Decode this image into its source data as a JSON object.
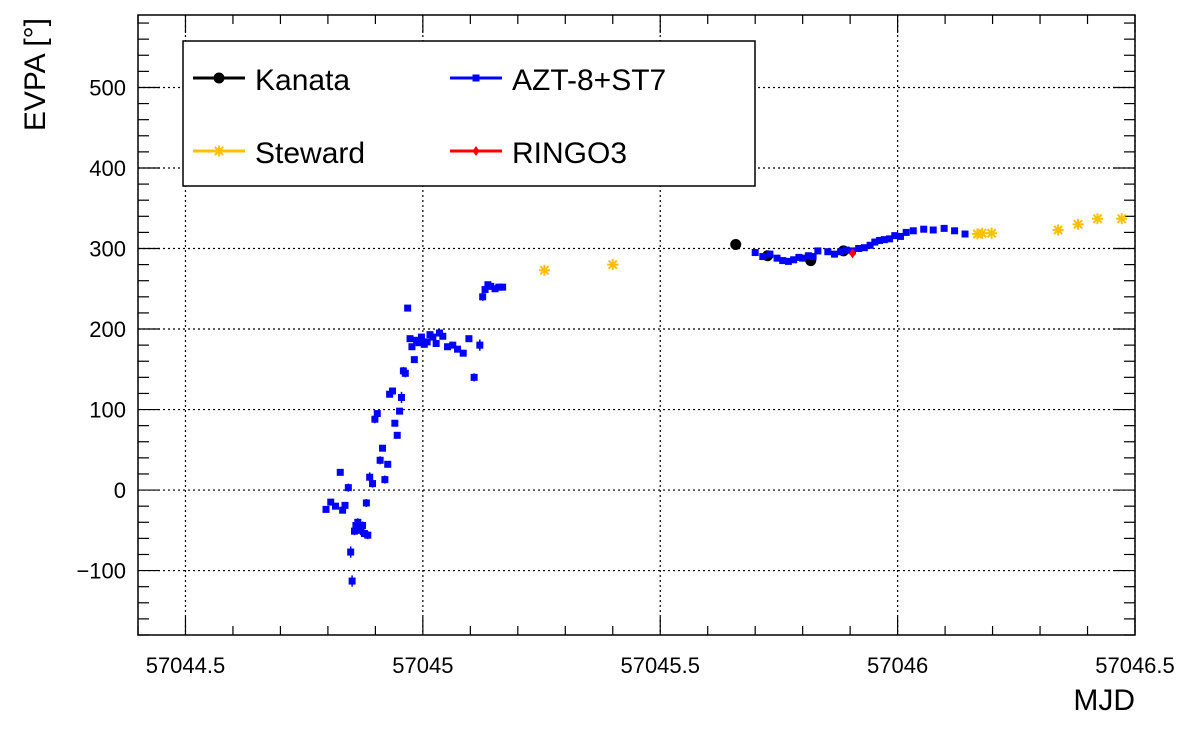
{
  "chart_data": {
    "type": "scatter",
    "xlabel": "MJD",
    "ylabel": "EVPA [°]",
    "xlim": [
      57044.4,
      57046.5
    ],
    "ylim": [
      -180,
      590
    ],
    "x_ticks": [
      {
        "value": 57044.5,
        "label": "57044.5"
      },
      {
        "value": 57045.0,
        "label": "57045"
      },
      {
        "value": 57045.5,
        "label": "57045.5"
      },
      {
        "value": 57046.0,
        "label": "57046"
      },
      {
        "value": 57046.5,
        "label": "57046.5"
      }
    ],
    "y_ticks": [
      {
        "value": -100,
        "label": "−100"
      },
      {
        "value": 0,
        "label": "0"
      },
      {
        "value": 100,
        "label": "100"
      },
      {
        "value": 200,
        "label": "200"
      },
      {
        "value": 300,
        "label": "300"
      },
      {
        "value": 400,
        "label": "400"
      },
      {
        "value": 500,
        "label": "500"
      }
    ],
    "grid": true,
    "legend_position": "top-left",
    "series": [
      {
        "name": "Kanata",
        "color": "#000000",
        "marker": "circle",
        "x": [
          57045.659,
          57045.726,
          57045.817,
          57045.886
        ],
        "y": [
          305,
          291,
          285,
          297
        ],
        "err": [
          2,
          3,
          3,
          3
        ]
      },
      {
        "name": "AZT-8+ST7",
        "color": "#0000ff",
        "marker": "square",
        "x": [
          57044.796,
          57044.806,
          57044.816,
          57044.826,
          57044.831,
          57044.836,
          57044.843,
          57044.848,
          57044.851,
          57044.856,
          57044.859,
          57044.863,
          57044.866,
          57044.869,
          57044.873,
          57044.877,
          57044.881,
          57044.884,
          57044.888,
          57044.894,
          57044.899,
          57044.904,
          57044.91,
          57044.915,
          57044.92,
          57044.926,
          57044.93,
          57044.936,
          57044.941,
          57044.946,
          57044.951,
          57044.955,
          57044.959,
          57044.963,
          57044.968,
          57044.973,
          57044.977,
          57044.982,
          57044.987,
          57044.992,
          57044.997,
          57045.003,
          57045.009,
          57045.015,
          57045.021,
          57045.028,
          57045.035,
          57045.042,
          57045.052,
          57045.063,
          57045.073,
          57045.085,
          57045.097,
          57045.108,
          57045.12,
          57045.126,
          57045.131,
          57045.137,
          57045.143,
          57045.152,
          57045.16,
          57045.168,
          57045.7,
          57045.716,
          57045.731,
          57045.746,
          57045.758,
          57045.77,
          57045.781,
          57045.792,
          57045.8,
          57045.812,
          57045.822,
          57045.832,
          57045.853,
          57045.867,
          57045.88,
          57045.892,
          57045.905,
          57045.918,
          57045.93,
          57045.942,
          57045.952,
          57045.962,
          57045.972,
          57045.983,
          57045.994,
          57046.006,
          57046.018,
          57046.033,
          57046.055,
          57046.075,
          57046.098,
          57046.12,
          57046.142
        ],
        "y": [
          -24,
          -15,
          -20,
          22,
          -25,
          -19,
          3,
          -77,
          -113,
          -51,
          -44,
          -40,
          -47,
          -50,
          -44,
          -54,
          -16,
          -56,
          16,
          8,
          88,
          95,
          37,
          52,
          13,
          32,
          119,
          123,
          83,
          68,
          98,
          115,
          148,
          145,
          226,
          188,
          178,
          162,
          186,
          183,
          190,
          181,
          184,
          193,
          190,
          182,
          195,
          191,
          178,
          180,
          175,
          170,
          188,
          140,
          180,
          240,
          249,
          255,
          253,
          250,
          252,
          252,
          295,
          290,
          293,
          288,
          285,
          284,
          286,
          289,
          288,
          291,
          290,
          297,
          296,
          293,
          296,
          298,
          297,
          300,
          301,
          304,
          308,
          310,
          311,
          312,
          316,
          315,
          320,
          322,
          324,
          323,
          325,
          322,
          318
        ],
        "err": [
          3,
          4,
          3,
          3,
          4,
          4,
          5,
          7,
          7,
          5,
          5,
          5,
          5,
          6,
          5,
          5,
          5,
          5,
          6,
          5,
          5,
          4,
          5,
          4,
          5,
          4,
          4,
          4,
          4,
          4,
          4,
          7,
          5,
          5,
          3,
          4,
          3,
          4,
          4,
          3,
          4,
          3,
          3,
          3,
          3,
          3,
          3,
          3,
          3,
          3,
          3,
          3,
          4,
          5,
          7,
          5,
          4,
          3,
          3,
          3,
          3,
          3,
          2,
          2,
          2,
          2,
          2,
          2,
          2,
          2,
          2,
          2,
          2,
          2,
          2,
          2,
          2,
          2,
          2,
          2,
          2,
          2,
          2,
          2,
          2,
          2,
          2,
          2,
          2,
          2,
          2,
          2,
          2,
          2,
          2
        ]
      },
      {
        "name": "Steward",
        "color": "#ffc000",
        "marker": "star",
        "x": [
          57045.256,
          57045.4,
          57046.168,
          57046.178,
          57046.198,
          57046.338,
          57046.38,
          57046.421,
          57046.472
        ],
        "y": [
          273,
          280,
          318,
          319,
          319,
          323,
          330,
          337,
          337
        ],
        "err": [
          3,
          3,
          3,
          3,
          3,
          3,
          3,
          3,
          3
        ]
      },
      {
        "name": "RINGO3",
        "color": "#ff0000",
        "marker": "diamond",
        "x": [
          57045.905
        ],
        "y": [
          294
        ],
        "err": [
          3
        ]
      }
    ]
  }
}
